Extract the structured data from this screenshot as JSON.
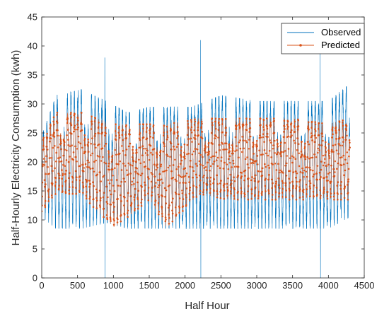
{
  "colors": {
    "observed": "#0072BD",
    "predicted": "#D95319",
    "axis": "#262626",
    "background": "#ffffff"
  },
  "chart_data": {
    "type": "line",
    "xlabel": "Half Hour",
    "ylabel": "Half-Hourly Electricity Consumption (kwh)",
    "xlim": [
      0,
      4500
    ],
    "ylim": [
      0,
      45
    ],
    "xticks": [
      0,
      500,
      1000,
      1500,
      2000,
      2500,
      3000,
      3500,
      4000,
      4500
    ],
    "yticks": [
      0,
      5,
      10,
      15,
      20,
      25,
      30,
      35,
      40,
      45
    ],
    "legend": {
      "location": "top-right",
      "entries": [
        "Observed",
        "Predicted"
      ]
    },
    "n_points": 4300,
    "series": [
      {
        "name": "Observed",
        "style": "line",
        "daily_cycle_half_hours": 48,
        "typical_range": [
          9,
          31
        ],
        "envelope": [
          {
            "x": 0,
            "min": 11,
            "max": 24
          },
          {
            "x": 200,
            "min": 9,
            "max": 31
          },
          {
            "x": 550,
            "min": 9,
            "max": 32
          },
          {
            "x": 900,
            "min": 10,
            "max": 30
          },
          {
            "x": 1200,
            "min": 9,
            "max": 28
          },
          {
            "x": 1500,
            "min": 9,
            "max": 29
          },
          {
            "x": 1800,
            "min": 9,
            "max": 29
          },
          {
            "x": 2100,
            "min": 9,
            "max": 29
          },
          {
            "x": 2500,
            "min": 9,
            "max": 31
          },
          {
            "x": 3000,
            "min": 9,
            "max": 30
          },
          {
            "x": 3500,
            "min": 9,
            "max": 30
          },
          {
            "x": 4000,
            "min": 9,
            "max": 30
          },
          {
            "x": 4300,
            "min": 11,
            "max": 33
          }
        ],
        "spikes": [
          {
            "x": 880,
            "y": 38
          },
          {
            "x": 885,
            "y": 0
          },
          {
            "x": 2215,
            "y": 41
          },
          {
            "x": 2220,
            "y": 0
          },
          {
            "x": 3885,
            "y": 39
          },
          {
            "x": 3890,
            "y": 0
          }
        ]
      },
      {
        "name": "Predicted",
        "style": "line-with-markers",
        "daily_cycle_half_hours": 48,
        "typical_range": [
          12,
          27
        ],
        "envelope": [
          {
            "x": 0,
            "min": 12,
            "max": 23
          },
          {
            "x": 200,
            "min": 15,
            "max": 28
          },
          {
            "x": 550,
            "min": 15,
            "max": 28
          },
          {
            "x": 1000,
            "min": 9,
            "max": 26
          },
          {
            "x": 1500,
            "min": 14,
            "max": 26
          },
          {
            "x": 1750,
            "min": 9,
            "max": 26
          },
          {
            "x": 2200,
            "min": 15,
            "max": 27
          },
          {
            "x": 2600,
            "min": 14,
            "max": 27
          },
          {
            "x": 3000,
            "min": 14,
            "max": 27
          },
          {
            "x": 3500,
            "min": 14,
            "max": 27
          },
          {
            "x": 4000,
            "min": 14,
            "max": 26
          },
          {
            "x": 4300,
            "min": 14,
            "max": 27
          }
        ]
      }
    ]
  }
}
